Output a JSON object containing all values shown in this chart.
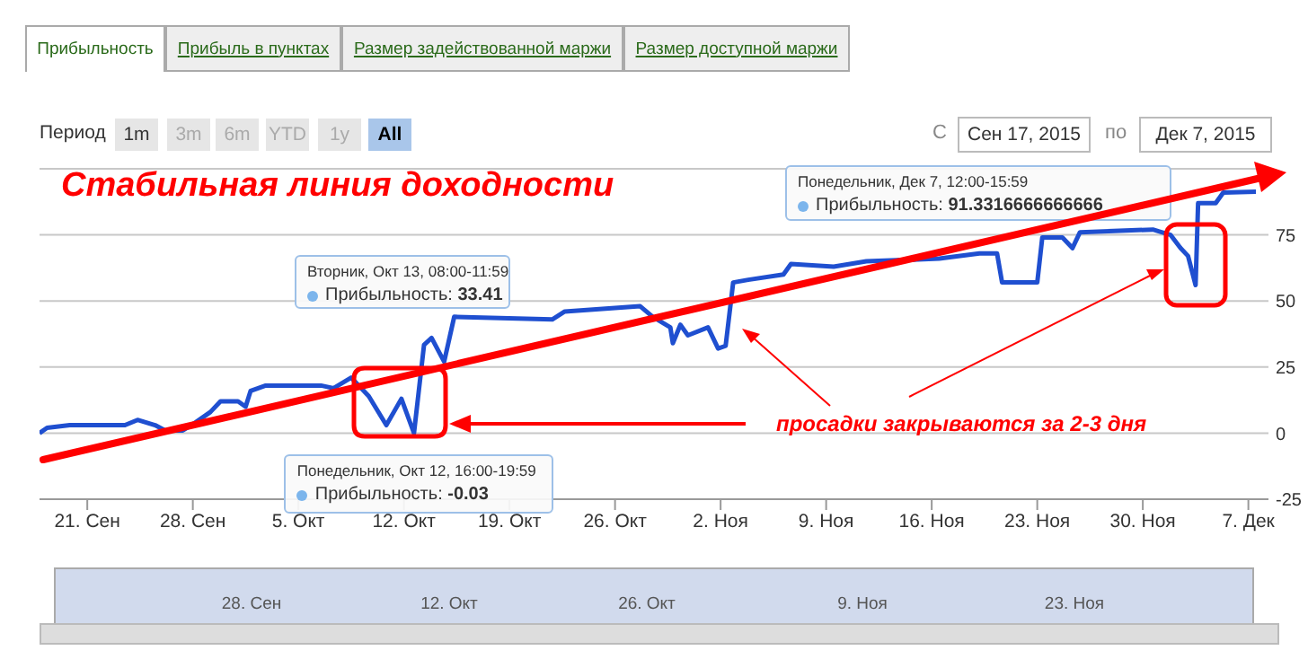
{
  "chart_data": {
    "type": "line",
    "title": "Стабильная линия доходности",
    "annotations": [
      "Прибыльность",
      "Прибыль в пунктах",
      "Размер задействованной маржи",
      "Размер доступной маржи",
      "Период",
      "1m",
      "3m",
      "6m",
      "YTD",
      "1y",
      "All",
      "С",
      "Сен 17, 2015",
      "по",
      "Дек 7, 2015",
      "просадки закрываются за 2-3 дня",
      "Вторник, Окт 13, 08:00-11:59",
      {
        "text": "Прибыльность: 33.41",
        "x": "2015-10-13T08:00",
        "y": 33.41
      },
      "Понедельник, Окт 12, 16:00-19:59",
      {
        "text": "Прибыльность: -0.03",
        "x": "2015-10-12T16:00",
        "y": -0.03
      },
      "Понедельник, Дек 7, 12:00-15:59",
      "Прибыльность: 91.3316666666666",
      "28. Сен",
      "12. Окт",
      "26. Окт",
      "9. Ноя",
      "23. Ноя"
    ],
    "xlim": [
      "2015-09-17T20:00",
      "2015-12-08T08:00"
    ],
    "xticks": [
      {
        "value": "2015-09-21",
        "label": "21. Сен"
      },
      {
        "value": "2015-09-28",
        "label": "28. Сен"
      },
      {
        "value": "2015-10-05",
        "label": "5. Окт"
      },
      {
        "value": "2015-10-12",
        "label": "12. Окт"
      },
      {
        "value": "2015-10-19",
        "label": "19. Окт"
      },
      {
        "value": "2015-10-26",
        "label": "26. Окт"
      },
      {
        "value": "2015-11-02",
        "label": "2. Ноя"
      },
      {
        "value": "2015-11-09",
        "label": "9. Ноя"
      },
      {
        "value": "2015-11-16",
        "label": "16. Ноя"
      },
      {
        "value": "2015-11-23",
        "label": "23. Ноя"
      },
      {
        "value": "2015-11-30",
        "label": "30. Ноя"
      },
      {
        "value": "2015-12-07",
        "label": "7. Дек"
      }
    ],
    "ylim": [
      -25,
      100
    ],
    "yticks": [
      -25,
      0,
      25,
      50,
      75,
      {
        "value": 100,
        "label": null
      }
    ],
    "grid": "y",
    "legend": false,
    "marker": "none",
    "line_style": "solid",
    "series": [
      {
        "color": "#1f4fd0",
        "x": [
          "2015-09-17T20:00",
          "2015-09-18T08:00",
          "2015-09-19T20:00",
          "2015-09-23T12:00",
          "2015-09-24T08:00",
          "2015-09-25T12:00",
          "2015-09-26T04:00",
          "2015-09-27T08:00",
          "2015-09-28T04:00",
          "2015-09-29T04:00",
          "2015-09-29T20:00",
          "2015-10-01T00:00",
          "2015-10-01T12:00",
          "2015-10-01T20:00",
          "2015-10-02T20:00",
          "2015-10-06T12:00",
          "2015-10-07T08:00",
          "2015-10-08T12:00",
          "2015-10-09T16:00",
          "2015-10-10T20:00",
          "2015-10-11T20:00",
          "2015-10-12T16:00",
          "2015-10-13T08:00",
          "2015-10-13T20:00",
          "2015-10-14T16:00",
          "2015-10-15T08:00",
          "2015-10-21T20:00",
          "2015-10-22T16:00",
          "2015-10-27T16:00",
          "2015-10-28T12:00",
          "2015-10-29T16:00",
          "2015-10-29T20:00",
          "2015-10-30T08:00",
          "2015-10-30T20:00",
          "2015-11-01T04:00",
          "2015-11-01T20:00",
          "2015-11-02T08:00",
          "2015-11-02T20:00",
          "2015-11-03T20:00",
          "2015-11-06T04:00",
          "2015-11-06T16:00",
          "2015-11-09T12:00",
          "2015-11-11T16:00",
          "2015-11-16T12:00",
          "2015-11-19T04:00",
          "2015-11-20T08:00",
          "2015-11-20T16:00",
          "2015-11-23T00:00",
          "2015-11-23T08:00",
          "2015-11-24T16:00",
          "2015-11-25T08:00",
          "2015-11-25T20:00",
          "2015-11-30T16:00",
          "2015-12-01T20:00",
          "2015-12-02T12:00",
          "2015-12-03T00:00",
          "2015-12-03T12:00",
          "2015-12-03T16:00",
          "2015-12-04T20:00",
          "2015-12-05T08:00",
          "2015-12-07T12:00"
        ],
        "values": [
          0,
          2,
          3,
          3,
          5,
          3,
          1,
          1,
          4,
          8,
          12,
          12,
          10,
          16,
          18,
          18,
          17,
          21,
          14,
          3,
          13,
          -0.03,
          33.41,
          36,
          27,
          44,
          43,
          46,
          48,
          44,
          40,
          34,
          41,
          37,
          40,
          32,
          33,
          57,
          58,
          60,
          64,
          63,
          65,
          66,
          68,
          68,
          57,
          57,
          74,
          74,
          70,
          76,
          77,
          75,
          70,
          67,
          56,
          87,
          87,
          91,
          91.3316666666666
        ]
      }
    ]
  }
}
